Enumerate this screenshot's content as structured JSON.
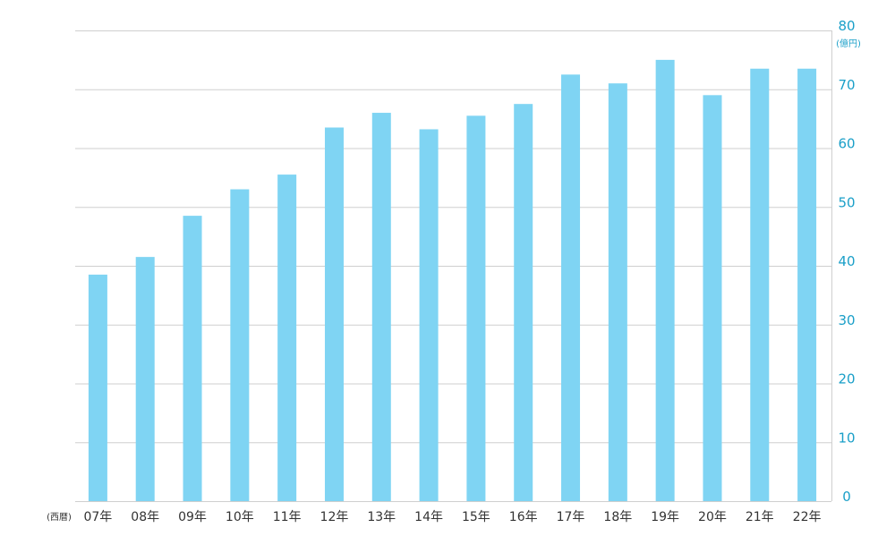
{
  "chart_data": {
    "type": "bar",
    "categories": [
      "07年",
      "08年",
      "09年",
      "10年",
      "11年",
      "12年",
      "13年",
      "14年",
      "15年",
      "16年",
      "17年",
      "18年",
      "19年",
      "20年",
      "21年",
      "22年"
    ],
    "values": [
      38.5,
      41.5,
      48.5,
      53,
      55.5,
      63.5,
      66,
      63.2,
      65.5,
      67.5,
      72.5,
      71,
      75,
      69,
      73.5,
      73.5
    ],
    "ylim": [
      0,
      80
    ],
    "yticks": [
      0,
      10,
      20,
      30,
      40,
      50,
      60,
      70,
      80
    ],
    "y_unit_label": "(億円)",
    "x_prefix_label": "(西暦)",
    "y_axis_position": "right",
    "grid": true,
    "colors": {
      "bar": "#7fd4f3",
      "grid": "#cfcfcf",
      "y_tick_text": "#1a9fc8",
      "x_tick_text": "#333333"
    }
  }
}
